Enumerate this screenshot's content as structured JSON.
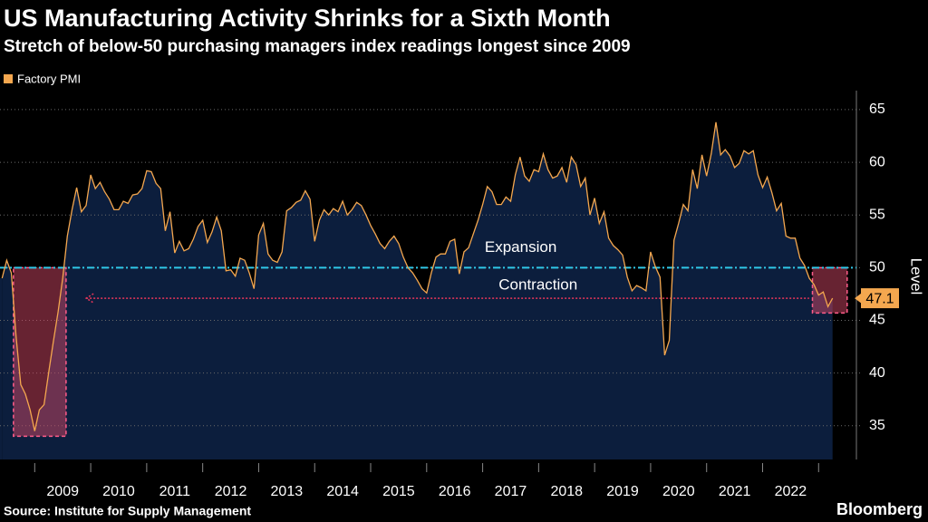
{
  "chart_data": {
    "type": "line",
    "title": "US Manufacturing Activity Shrinks for a Sixth Month",
    "subtitle": "Stretch of below-50 purchasing managers index readings longest since 2009",
    "y_label": "Level",
    "source": "Source: Institute for Supply Management",
    "brand": "Bloomberg",
    "x": [
      2008.417,
      2008.5,
      2008.583,
      2008.667,
      2008.75,
      2008.833,
      2008.917,
      2009,
      2009.083,
      2009.167,
      2009.25,
      2009.333,
      2009.417,
      2009.5,
      2009.583,
      2009.667,
      2009.75,
      2009.833,
      2009.917,
      2010,
      2010.083,
      2010.167,
      2010.25,
      2010.333,
      2010.417,
      2010.5,
      2010.583,
      2010.667,
      2010.75,
      2010.833,
      2010.917,
      2011,
      2011.083,
      2011.167,
      2011.25,
      2011.333,
      2011.417,
      2011.5,
      2011.583,
      2011.667,
      2011.75,
      2011.833,
      2011.917,
      2012,
      2012.083,
      2012.167,
      2012.25,
      2012.333,
      2012.417,
      2012.5,
      2012.583,
      2012.667,
      2012.75,
      2012.833,
      2012.917,
      2013,
      2013.083,
      2013.167,
      2013.25,
      2013.333,
      2013.417,
      2013.5,
      2013.583,
      2013.667,
      2013.75,
      2013.833,
      2013.917,
      2014,
      2014.083,
      2014.167,
      2014.25,
      2014.333,
      2014.417,
      2014.5,
      2014.583,
      2014.667,
      2014.75,
      2014.833,
      2014.917,
      2015,
      2015.083,
      2015.167,
      2015.25,
      2015.333,
      2015.417,
      2015.5,
      2015.583,
      2015.667,
      2015.75,
      2015.833,
      2015.917,
      2016,
      2016.083,
      2016.167,
      2016.25,
      2016.333,
      2016.417,
      2016.5,
      2016.583,
      2016.667,
      2016.75,
      2016.833,
      2016.917,
      2017,
      2017.083,
      2017.167,
      2017.25,
      2017.333,
      2017.417,
      2017.5,
      2017.583,
      2017.667,
      2017.75,
      2017.833,
      2017.917,
      2018,
      2018.083,
      2018.167,
      2018.25,
      2018.333,
      2018.417,
      2018.5,
      2018.583,
      2018.667,
      2018.75,
      2018.833,
      2018.917,
      2019,
      2019.083,
      2019.167,
      2019.25,
      2019.333,
      2019.417,
      2019.5,
      2019.583,
      2019.667,
      2019.75,
      2019.833,
      2019.917,
      2020,
      2020.083,
      2020.167,
      2020.25,
      2020.333,
      2020.417,
      2020.5,
      2020.583,
      2020.667,
      2020.75,
      2020.833,
      2020.917,
      2021,
      2021.083,
      2021.167,
      2021.25,
      2021.333,
      2021.417,
      2021.5,
      2021.583,
      2021.667,
      2021.75,
      2021.833,
      2021.917,
      2022,
      2022.083,
      2022.167,
      2022.25,
      2022.333,
      2022.417,
      2022.5,
      2022.583,
      2022.667,
      2022.75,
      2022.833,
      2022.917,
      2023,
      2023.083,
      2023.167,
      2023.25
    ],
    "series": [
      {
        "name": "Factory PMI",
        "color": "#f4a74f",
        "values": [
          49.0,
          50.7,
          49.5,
          43.5,
          38.9,
          38.0,
          36.5,
          34.5,
          36.5,
          37.0,
          40.1,
          43.0,
          45.8,
          49.0,
          53.0,
          55.5,
          57.6,
          55.3,
          55.9,
          58.8,
          57.5,
          58.1,
          57.2,
          56.5,
          55.5,
          55.5,
          56.3,
          56.1,
          56.9,
          57.0,
          57.5,
          59.2,
          59.1,
          58.0,
          57.5,
          53.5,
          55.3,
          51.4,
          52.5,
          51.6,
          51.8,
          52.7,
          53.9,
          54.5,
          52.4,
          53.4,
          54.8,
          53.5,
          49.7,
          49.8,
          49.2,
          50.9,
          50.7,
          49.5,
          48.0,
          53.1,
          54.2,
          51.3,
          50.7,
          50.5,
          51.5,
          55.4,
          55.7,
          56.2,
          56.4,
          57.3,
          56.5,
          52.5,
          54.5,
          55.5,
          55.0,
          55.6,
          55.3,
          56.3,
          55.0,
          55.5,
          56.2,
          55.9,
          55.0,
          54.0,
          53.2,
          52.3,
          51.8,
          52.5,
          53.0,
          52.3,
          51.0,
          50.0,
          49.5,
          48.8,
          48.0,
          47.6,
          49.5,
          51.0,
          51.3,
          51.3,
          52.5,
          52.7,
          49.4,
          51.5,
          51.9,
          53.2,
          54.5,
          56.0,
          57.7,
          57.2,
          56.0,
          56.0,
          56.7,
          56.3,
          58.8,
          60.5,
          58.7,
          58.2,
          59.3,
          59.1,
          60.8,
          59.3,
          58.5,
          58.7,
          59.5,
          58.1,
          60.5,
          59.8,
          57.7,
          58.5,
          55.0,
          56.6,
          54.2,
          55.3,
          52.8,
          52.1,
          51.7,
          51.2,
          49.1,
          47.8,
          48.3,
          48.1,
          47.8,
          51.5,
          50.1,
          49.1,
          41.7,
          43.1,
          52.6,
          54.2,
          56.0,
          55.4,
          59.3,
          57.5,
          60.7,
          58.7,
          60.8,
          63.8,
          60.7,
          61.2,
          60.6,
          59.5,
          59.9,
          61.1,
          60.8,
          61.1,
          58.8,
          57.6,
          58.6,
          57.1,
          55.4,
          56.1,
          53.0,
          52.8,
          52.8,
          50.9,
          50.2,
          49.0,
          48.4,
          47.4,
          47.7,
          46.3,
          47.1
        ]
      }
    ],
    "xlim": [
      2008.38,
      2023.4
    ],
    "ylim": [
      31.8,
      66.8
    ],
    "yticks": [
      35,
      40,
      45,
      50,
      55,
      60,
      65
    ],
    "xticks": [
      {
        "value": 2009.5,
        "label": "2009"
      },
      {
        "value": 2010.5,
        "label": "2010"
      },
      {
        "value": 2011.5,
        "label": "2011"
      },
      {
        "value": 2012.5,
        "label": "2012"
      },
      {
        "value": 2013.5,
        "label": "2013"
      },
      {
        "value": 2014.5,
        "label": "2014"
      },
      {
        "value": 2015.5,
        "label": "2015"
      },
      {
        "value": 2016.5,
        "label": "2016"
      },
      {
        "value": 2017.5,
        "label": "2017"
      },
      {
        "value": 2018.5,
        "label": "2018"
      },
      {
        "value": 2019.5,
        "label": "2019"
      },
      {
        "value": 2020.5,
        "label": "2020"
      },
      {
        "value": 2021.5,
        "label": "2021"
      },
      {
        "value": 2022.5,
        "label": "2022"
      }
    ],
    "grid": true,
    "area_color": "#0c1e3d",
    "reference_line": {
      "value": 50,
      "color": "#2fc8e8"
    },
    "annotations": [
      {
        "text": "Expansion",
        "x": 2017.68,
        "y": 51.9,
        "color": "#9ccc3a"
      },
      {
        "text": "Contraction",
        "x": 2017.99,
        "y": 48.3,
        "color": "#e8365a"
      }
    ],
    "highlights": [
      {
        "x": [
          2008.62,
          2009.56
        ],
        "y": [
          34.0,
          50
        ]
      },
      {
        "x": [
          2022.89,
          2023.51
        ],
        "y": [
          45.7,
          50
        ]
      }
    ],
    "arrow_x": [
      2009.92,
      2022.83
    ]
  }
}
